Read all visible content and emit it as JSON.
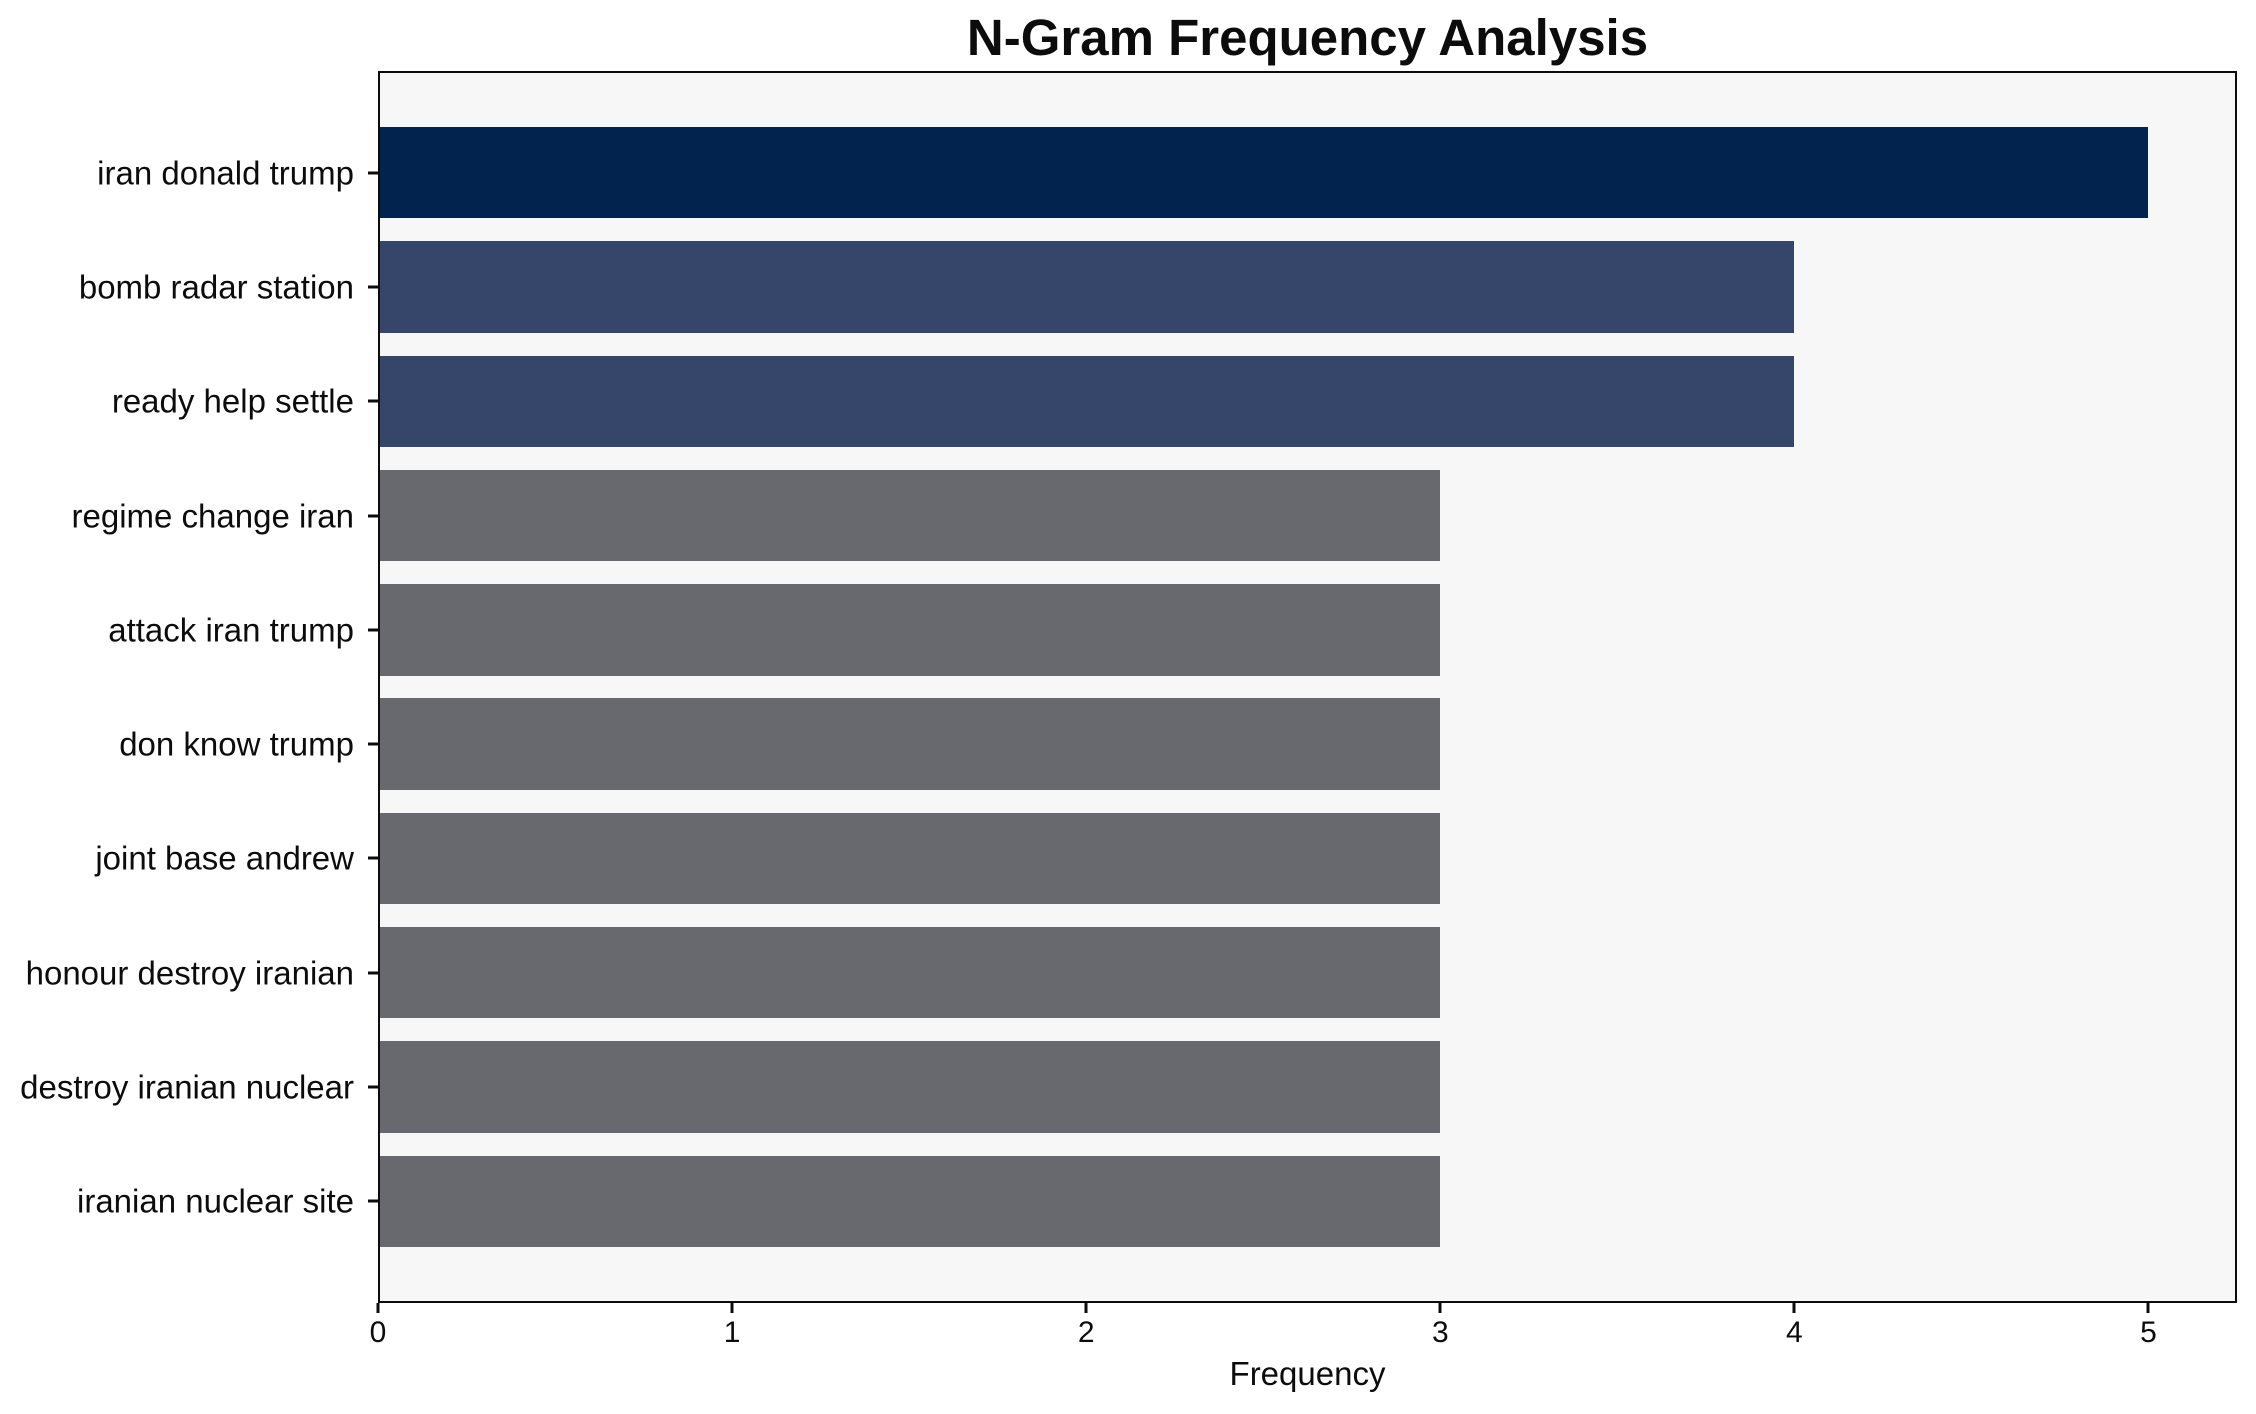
{
  "chart_data": {
    "type": "bar",
    "orientation": "horizontal",
    "title": "N-Gram Frequency Analysis",
    "xlabel": "Frequency",
    "ylabel": "",
    "categories": [
      "iran donald trump",
      "bomb radar station",
      "ready help settle",
      "regime change iran",
      "attack iran trump",
      "don know trump",
      "joint base andrew",
      "honour destroy iranian",
      "destroy iranian nuclear",
      "iranian nuclear site"
    ],
    "values": [
      5,
      4,
      4,
      3,
      3,
      3,
      3,
      3,
      3,
      3
    ],
    "xticks": [
      0,
      1,
      2,
      3,
      4,
      5
    ],
    "xlim": [
      0,
      5.25
    ],
    "grid": false,
    "legend": false,
    "colors": {
      "bar_colors": [
        "#02234e",
        "#36466b",
        "#36466b",
        "#67696e",
        "#67696e",
        "#67696e",
        "#67696e",
        "#67696e",
        "#67696e",
        "#67696e"
      ],
      "plot_background": "#f7f7f8",
      "frame": "#0c0c0c",
      "text": "#0c0c0c",
      "page_background": "#ffffff"
    }
  }
}
